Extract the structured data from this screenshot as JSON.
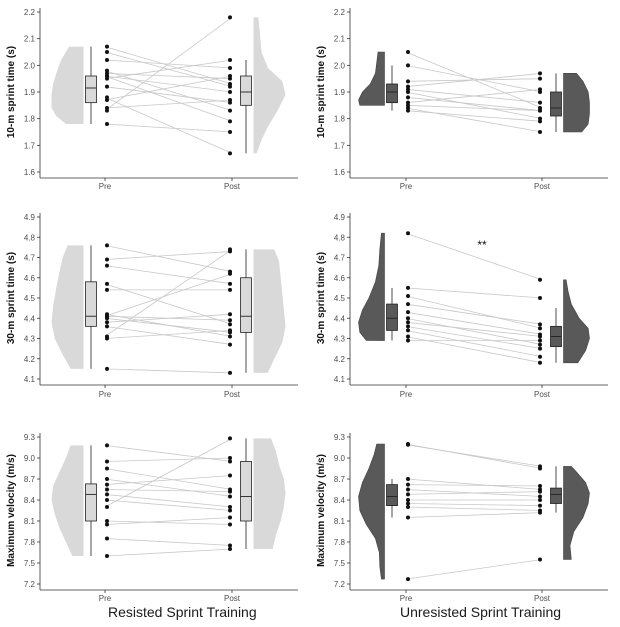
{
  "colors": {
    "resisted_fill": "#d9d9d9",
    "unresisted_fill": "#595959",
    "point": "#111111",
    "line": "#c8c8c8",
    "axis": "#333333",
    "tick_text": "#4d4d4d"
  },
  "group_labels": {
    "left": "Resisted Sprint Training",
    "right": "Unresisted Sprint Training"
  },
  "chart_data": [
    {
      "id": "p10-rst",
      "type": "raincloud",
      "group": "Resisted Sprint Training",
      "ylabel": "10-m sprint time (s)",
      "ylim": [
        1.6,
        2.2
      ],
      "yticks": [
        "1.6",
        "1.7",
        "1.8",
        "1.9",
        "2.0",
        "2.1",
        "2.2"
      ],
      "categories": [
        "Pre",
        "Post"
      ],
      "annotation": "",
      "pre": [
        2.07,
        2.05,
        2.02,
        1.98,
        1.97,
        1.96,
        1.96,
        1.95,
        1.92,
        1.88,
        1.87,
        1.84,
        1.83,
        1.78
      ],
      "post": [
        1.93,
        1.92,
        1.99,
        1.83,
        1.95,
        1.9,
        1.79,
        2.02,
        1.86,
        1.67,
        1.96,
        1.87,
        2.18,
        1.75
      ],
      "pre_box": {
        "min": 1.78,
        "q1": 1.86,
        "median": 1.915,
        "q3": 1.96,
        "max": 2.07
      },
      "post_box": {
        "min": 1.67,
        "q1": 1.85,
        "median": 1.9,
        "q3": 1.96,
        "max": 2.02
      },
      "pre_violin": [
        [
          1.78,
          0.55
        ],
        [
          1.81,
          0.85
        ],
        [
          1.84,
          1.0
        ],
        [
          1.89,
          1.0
        ],
        [
          1.93,
          0.95
        ],
        [
          1.97,
          0.85
        ],
        [
          2.02,
          0.7
        ],
        [
          2.07,
          0.45
        ]
      ],
      "post_violin": [
        [
          1.67,
          0.1
        ],
        [
          1.72,
          0.25
        ],
        [
          1.77,
          0.45
        ],
        [
          1.83,
          0.75
        ],
        [
          1.89,
          1.0
        ],
        [
          1.94,
          0.9
        ],
        [
          1.99,
          0.45
        ],
        [
          2.05,
          0.25
        ],
        [
          2.12,
          0.2
        ],
        [
          2.18,
          0.15
        ]
      ]
    },
    {
      "id": "p10-ust",
      "type": "raincloud",
      "group": "Unresisted Sprint Training",
      "ylabel": "10-m sprint time (s)",
      "ylim": [
        1.6,
        2.2
      ],
      "yticks": [
        "1.6",
        "1.7",
        "1.8",
        "1.9",
        "2.0",
        "2.1",
        "2.2"
      ],
      "categories": [
        "Pre",
        "Post"
      ],
      "annotation": "",
      "pre": [
        2.05,
        2.0,
        1.94,
        1.92,
        1.91,
        1.9,
        1.88,
        1.86,
        1.85,
        1.84,
        1.83
      ],
      "post": [
        1.84,
        1.9,
        1.95,
        1.97,
        1.86,
        1.8,
        1.83,
        1.91,
        1.83,
        1.75,
        1.79
      ],
      "pre_box": {
        "min": 1.83,
        "q1": 1.86,
        "median": 1.9,
        "q3": 1.93,
        "max": 2.0
      },
      "post_box": {
        "min": 1.75,
        "q1": 1.81,
        "median": 1.84,
        "q3": 1.9,
        "max": 1.97
      },
      "pre_violin": [
        [
          1.85,
          0.95
        ],
        [
          1.87,
          1.0
        ],
        [
          1.9,
          0.85
        ],
        [
          1.93,
          0.55
        ],
        [
          1.97,
          0.35
        ],
        [
          2.01,
          0.3
        ],
        [
          2.05,
          0.25
        ]
      ],
      "post_violin": [
        [
          1.75,
          0.7
        ],
        [
          1.78,
          0.95
        ],
        [
          1.82,
          1.0
        ],
        [
          1.86,
          1.0
        ],
        [
          1.9,
          0.95
        ],
        [
          1.94,
          0.75
        ],
        [
          1.97,
          0.5
        ]
      ]
    },
    {
      "id": "p30-rst",
      "type": "raincloud",
      "group": "Resisted Sprint Training",
      "ylabel": "30-m sprint time (s)",
      "ylim": [
        4.1,
        4.9
      ],
      "yticks": [
        "4.1",
        "4.2",
        "4.3",
        "4.4",
        "4.5",
        "4.6",
        "4.7",
        "4.8",
        "4.9"
      ],
      "categories": [
        "Pre",
        "Post"
      ],
      "annotation": "",
      "pre": [
        4.76,
        4.69,
        4.66,
        4.57,
        4.54,
        4.42,
        4.41,
        4.41,
        4.4,
        4.38,
        4.36,
        4.31,
        4.3,
        4.15
      ],
      "post": [
        4.63,
        4.73,
        4.57,
        4.37,
        4.54,
        4.31,
        4.62,
        4.39,
        4.33,
        4.42,
        4.27,
        4.74,
        4.34,
        4.13
      ],
      "pre_box": {
        "min": 4.15,
        "q1": 4.36,
        "median": 4.41,
        "q3": 4.58,
        "max": 4.76
      },
      "post_box": {
        "min": 4.13,
        "q1": 4.33,
        "median": 4.41,
        "q3": 4.6,
        "max": 4.74
      },
      "pre_violin": [
        [
          4.15,
          0.4
        ],
        [
          4.22,
          0.65
        ],
        [
          4.3,
          0.9
        ],
        [
          4.38,
          1.0
        ],
        [
          4.46,
          0.95
        ],
        [
          4.55,
          0.85
        ],
        [
          4.63,
          0.75
        ],
        [
          4.7,
          0.65
        ],
        [
          4.76,
          0.5
        ]
      ],
      "post_violin": [
        [
          4.13,
          0.45
        ],
        [
          4.2,
          0.65
        ],
        [
          4.28,
          0.9
        ],
        [
          4.36,
          1.0
        ],
        [
          4.44,
          0.95
        ],
        [
          4.52,
          0.9
        ],
        [
          4.6,
          0.85
        ],
        [
          4.68,
          0.8
        ],
        [
          4.74,
          0.65
        ]
      ]
    },
    {
      "id": "p30-ust",
      "type": "raincloud",
      "group": "Unresisted Sprint Training",
      "ylabel": "30-m sprint time (s)",
      "ylim": [
        4.1,
        4.9
      ],
      "yticks": [
        "4.1",
        "4.2",
        "4.3",
        "4.4",
        "4.5",
        "4.6",
        "4.7",
        "4.8",
        "4.9"
      ],
      "categories": [
        "Pre",
        "Post"
      ],
      "annotation": "**",
      "pre": [
        4.82,
        4.55,
        4.51,
        4.47,
        4.43,
        4.4,
        4.38,
        4.36,
        4.34,
        4.31,
        4.29
      ],
      "post": [
        4.59,
        4.5,
        4.35,
        4.37,
        4.32,
        4.27,
        4.31,
        4.25,
        4.21,
        4.18,
        4.29
      ],
      "pre_box": {
        "min": 4.29,
        "q1": 4.34,
        "median": 4.4,
        "q3": 4.47,
        "max": 4.55
      },
      "post_box": {
        "min": 4.18,
        "q1": 4.26,
        "median": 4.31,
        "q3": 4.36,
        "max": 4.45
      },
      "pre_violin": [
        [
          4.29,
          0.7
        ],
        [
          4.33,
          0.95
        ],
        [
          4.38,
          1.0
        ],
        [
          4.44,
          0.85
        ],
        [
          4.5,
          0.6
        ],
        [
          4.58,
          0.35
        ],
        [
          4.66,
          0.22
        ],
        [
          4.74,
          0.18
        ],
        [
          4.82,
          0.12
        ]
      ],
      "post_violin": [
        [
          4.18,
          0.55
        ],
        [
          4.24,
          0.85
        ],
        [
          4.3,
          1.0
        ],
        [
          4.35,
          0.95
        ],
        [
          4.4,
          0.6
        ],
        [
          4.47,
          0.3
        ],
        [
          4.53,
          0.18
        ],
        [
          4.59,
          0.1
        ]
      ]
    },
    {
      "id": "pv-rst",
      "type": "raincloud",
      "group": "Resisted Sprint Training",
      "ylabel": "Maximum velocity (m/s)",
      "ylim": [
        7.2,
        9.3
      ],
      "yticks": [
        "7.2",
        "7.5",
        "7.8",
        "8.1",
        "8.4",
        "8.7",
        "9.0",
        "9.3"
      ],
      "categories": [
        "Pre",
        "Post"
      ],
      "annotation": "",
      "pre": [
        9.18,
        8.95,
        8.85,
        8.7,
        8.62,
        8.55,
        8.48,
        8.4,
        8.3,
        8.1,
        8.05,
        7.85,
        7.6
      ],
      "post": [
        8.95,
        9.0,
        8.55,
        8.45,
        8.75,
        8.52,
        8.3,
        8.25,
        9.28,
        8.05,
        8.15,
        7.75,
        7.7
      ],
      "pre_box": {
        "min": 7.6,
        "q1": 8.1,
        "median": 8.48,
        "q3": 8.63,
        "max": 9.18
      },
      "post_box": {
        "min": 7.7,
        "q1": 8.1,
        "median": 8.45,
        "q3": 8.95,
        "max": 9.28
      },
      "pre_violin": [
        [
          7.6,
          0.35
        ],
        [
          7.8,
          0.55
        ],
        [
          8.0,
          0.75
        ],
        [
          8.2,
          0.9
        ],
        [
          8.4,
          1.0
        ],
        [
          8.6,
          0.95
        ],
        [
          8.8,
          0.75
        ],
        [
          9.0,
          0.55
        ],
        [
          9.18,
          0.4
        ]
      ],
      "post_violin": [
        [
          7.7,
          0.6
        ],
        [
          7.9,
          0.7
        ],
        [
          8.1,
          0.85
        ],
        [
          8.3,
          0.95
        ],
        [
          8.5,
          1.0
        ],
        [
          8.7,
          0.95
        ],
        [
          8.9,
          0.8
        ],
        [
          9.1,
          0.7
        ],
        [
          9.28,
          0.55
        ]
      ]
    },
    {
      "id": "pv-ust",
      "type": "raincloud",
      "group": "Unresisted Sprint Training",
      "ylabel": "Maximum velocity (m/s)",
      "ylim": [
        7.2,
        9.3
      ],
      "yticks": [
        "7.2",
        "7.5",
        "7.8",
        "8.1",
        "8.4",
        "8.7",
        "9.0",
        "9.3"
      ],
      "categories": [
        "Pre",
        "Post"
      ],
      "annotation": "",
      "pre": [
        9.2,
        9.19,
        8.7,
        8.62,
        8.55,
        8.48,
        8.4,
        8.35,
        8.3,
        8.15,
        7.27
      ],
      "post": [
        8.85,
        8.88,
        8.55,
        8.6,
        8.45,
        8.52,
        8.4,
        8.32,
        8.25,
        8.22,
        7.55
      ],
      "pre_box": {
        "min": 8.15,
        "q1": 8.32,
        "median": 8.45,
        "q3": 8.62,
        "max": 8.7
      },
      "post_box": {
        "min": 8.22,
        "q1": 8.35,
        "median": 8.48,
        "q3": 8.57,
        "max": 8.88
      },
      "pre_violin": [
        [
          7.27,
          0.12
        ],
        [
          7.45,
          0.18
        ],
        [
          7.65,
          0.2
        ],
        [
          7.85,
          0.35
        ],
        [
          8.05,
          0.7
        ],
        [
          8.25,
          0.95
        ],
        [
          8.45,
          1.0
        ],
        [
          8.65,
          0.85
        ],
        [
          8.85,
          0.6
        ],
        [
          9.05,
          0.4
        ],
        [
          9.2,
          0.3
        ]
      ],
      "post_violin": [
        [
          7.55,
          0.3
        ],
        [
          7.75,
          0.25
        ],
        [
          7.95,
          0.4
        ],
        [
          8.15,
          0.75
        ],
        [
          8.35,
          0.95
        ],
        [
          8.5,
          1.0
        ],
        [
          8.65,
          0.85
        ],
        [
          8.8,
          0.5
        ],
        [
          8.88,
          0.3
        ]
      ]
    }
  ]
}
